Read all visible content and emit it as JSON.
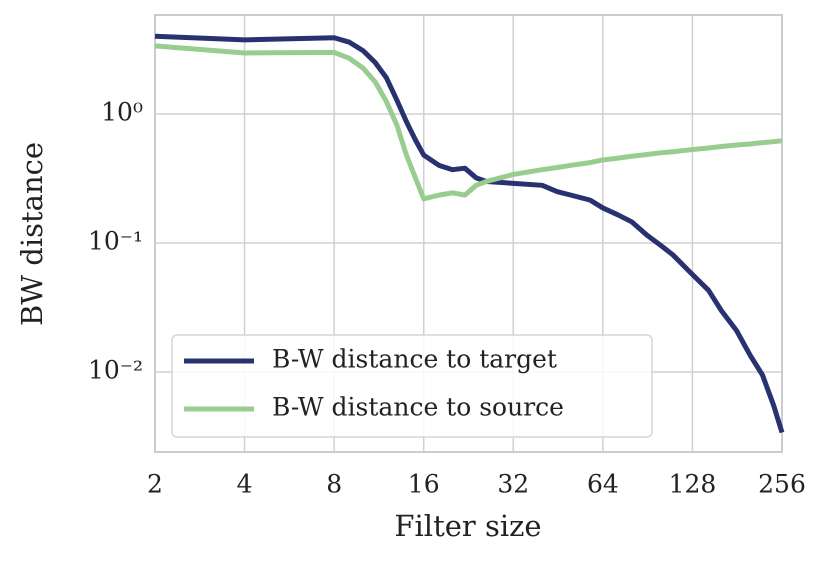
{
  "chart_data": {
    "type": "line",
    "x_label": "Filter size",
    "y_label": "BW distance",
    "x": [
      2,
      4,
      8,
      9,
      10,
      11,
      12,
      13,
      14,
      15,
      16,
      18,
      20,
      22,
      24,
      26,
      32,
      40,
      45,
      50,
      58,
      64,
      72,
      80,
      90,
      100,
      110,
      128,
      145,
      160,
      180,
      200,
      220,
      240,
      256
    ],
    "series": [
      {
        "name": "B-W distance to target",
        "color": "#283271",
        "values": [
          4.0,
          3.75,
          3.9,
          3.6,
          3.1,
          2.5,
          1.9,
          1.28,
          0.87,
          0.63,
          0.48,
          0.4,
          0.37,
          0.38,
          0.32,
          0.3,
          0.29,
          0.28,
          0.25,
          0.235,
          0.215,
          0.187,
          0.165,
          0.146,
          0.115,
          0.096,
          0.081,
          0.057,
          0.043,
          0.03,
          0.021,
          0.0135,
          0.0095,
          0.0055,
          0.0034
        ]
      },
      {
        "name": "B-W distance to source",
        "color": "#99cc8f",
        "values": [
          3.37,
          2.97,
          3.0,
          2.7,
          2.27,
          1.77,
          1.24,
          0.82,
          0.48,
          0.32,
          0.22,
          0.235,
          0.245,
          0.235,
          0.28,
          0.3,
          0.34,
          0.37,
          0.385,
          0.4,
          0.42,
          0.44,
          0.455,
          0.47,
          0.485,
          0.5,
          0.51,
          0.53,
          0.545,
          0.56,
          0.575,
          0.585,
          0.6,
          0.61,
          0.62
        ]
      }
    ],
    "xlim": [
      2,
      256
    ],
    "xticks": [
      2,
      4,
      8,
      16,
      32,
      64,
      128,
      256
    ],
    "xscale": "log",
    "ylim": [
      0.0024,
      5.85
    ],
    "yscale": "log",
    "yticks": [
      {
        "value": 1,
        "label": "10⁰"
      },
      {
        "value": 0.1,
        "label": "10⁻¹"
      },
      {
        "value": 0.01,
        "label": "10⁻²"
      }
    ],
    "grid": true,
    "legend": "lower left"
  }
}
